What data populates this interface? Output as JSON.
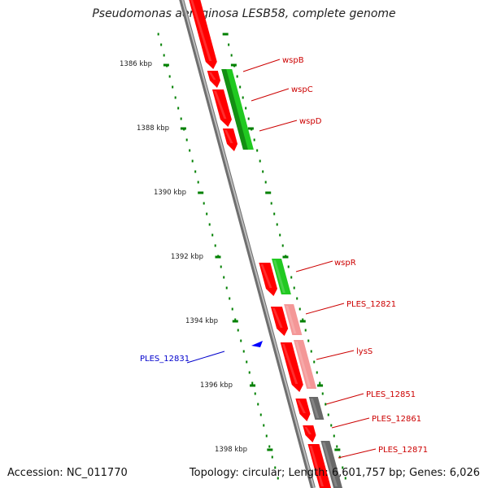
{
  "title": "Pseudomonas aeruginosa LESB58, complete genome",
  "accession": "Accession: NC_011770",
  "summary": "Topology: circular; Length: 6,601,757 bp; Genes: 6,026",
  "colors": {
    "forward_cds": "#ff0000",
    "forward_light": "#f49797",
    "reverse_cds": "#21c921",
    "gray_feature": "#696969",
    "tick": "#008000",
    "label_red": "#cc0000",
    "label_blue": "#0000cc",
    "backbone": "#8c8c8c"
  },
  "kbp_labels": [
    "1386 kbp",
    "1388 kbp",
    "1390 kbp",
    "1392 kbp",
    "1394 kbp",
    "1396 kbp",
    "1398 kbp"
  ],
  "gene_labels": [
    {
      "text": "wspB",
      "color": "red"
    },
    {
      "text": "wspC",
      "color": "red"
    },
    {
      "text": "wspD",
      "color": "red"
    },
    {
      "text": "wspR",
      "color": "red"
    },
    {
      "text": "PLES_12821",
      "color": "red"
    },
    {
      "text": "lysS",
      "color": "red"
    },
    {
      "text": "PLES_12851",
      "color": "red"
    },
    {
      "text": "PLES_12861",
      "color": "red"
    },
    {
      "text": "PLES_12871",
      "color": "red"
    },
    {
      "text": "PLES_12831",
      "color": "blue"
    }
  ]
}
